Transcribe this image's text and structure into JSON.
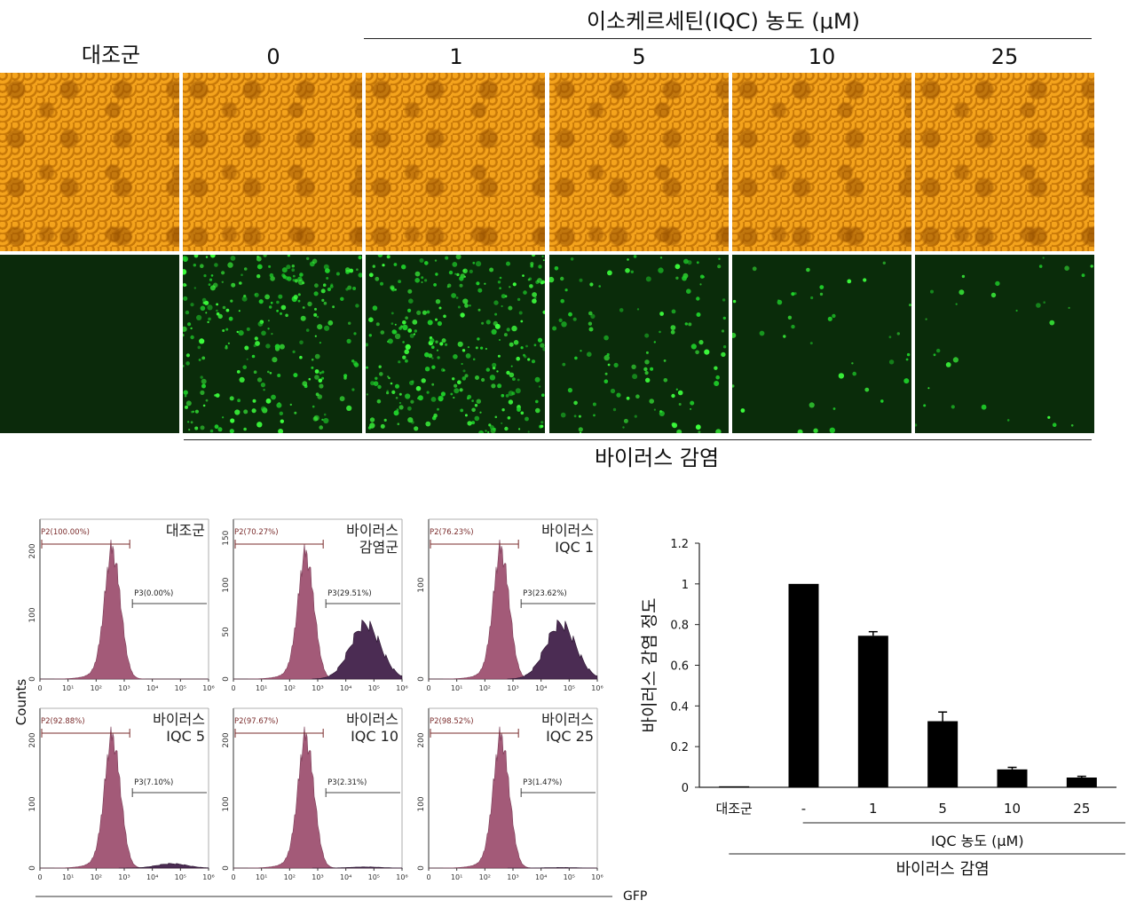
{
  "microscopy": {
    "concentration_title": "이소케르세틴(IQC) 농도 (μM)",
    "columns": [
      "대조군",
      "0",
      "1",
      "5",
      "10",
      "25"
    ],
    "bottom_label": "바이러스 감염"
  },
  "flow": {
    "y_axis_label": "Counts",
    "x_axis_label": "GFP",
    "panels": [
      {
        "label_line1": "대조군",
        "label_line2": "",
        "p2": "P2(100.00%)",
        "p3": "P3(0.00%)",
        "yticks": [
          "0",
          "100",
          "200"
        ],
        "ymax": 250
      },
      {
        "label_line1": "바이러스",
        "label_line2": "감염군",
        "p2": "P2(70.27%)",
        "p3": "P3(29.51%)",
        "yticks": [
          "0",
          "50",
          "100",
          "150"
        ],
        "ymax": 170
      },
      {
        "label_line1": "바이러스",
        "label_line2": "IQC 1",
        "p2": "P2(76.23%)",
        "p3": "P3(23.62%)",
        "yticks": [
          "0",
          "100"
        ],
        "ymax": 170
      },
      {
        "label_line1": "바이러스",
        "label_line2": "IQC 5",
        "p2": "P2(92.88%)",
        "p3": "P3(7.10%)",
        "yticks": [
          "0",
          "100",
          "200"
        ],
        "ymax": 250
      },
      {
        "label_line1": "바이러스",
        "label_line2": "IQC 10",
        "p2": "P2(97.67%)",
        "p3": "P3(2.31%)",
        "yticks": [
          "0",
          "100",
          "200"
        ],
        "ymax": 250
      },
      {
        "label_line1": "바이러스",
        "label_line2": "IQC 25",
        "p2": "P2(98.52%)",
        "p3": "P3(1.47%)",
        "yticks": [
          "0",
          "100",
          "200"
        ],
        "ymax": 250
      }
    ],
    "xticks": [
      "0",
      "10¹",
      "10²",
      "10³",
      "10⁴",
      "10⁵",
      "10⁶"
    ]
  },
  "chart_data": {
    "type": "bar",
    "title": "",
    "ylabel": "바이러스 감염 정도",
    "xlabel": "",
    "categories": [
      "대조군",
      "-",
      "1",
      "5",
      "10",
      "25"
    ],
    "values": [
      0.005,
      1.0,
      0.745,
      0.325,
      0.088,
      0.048
    ],
    "errors": [
      0,
      0,
      0.02,
      0.045,
      0.01,
      0.006
    ],
    "ylim": [
      0,
      1.2
    ],
    "yticks": [
      "0",
      "0.2",
      "0.4",
      "0.6",
      "0.8",
      "1",
      "1.2"
    ],
    "group_label_iqc": "IQC 농도 (μM)",
    "group_label_virus": "바이러스 감염",
    "bar_color": "#000000"
  }
}
